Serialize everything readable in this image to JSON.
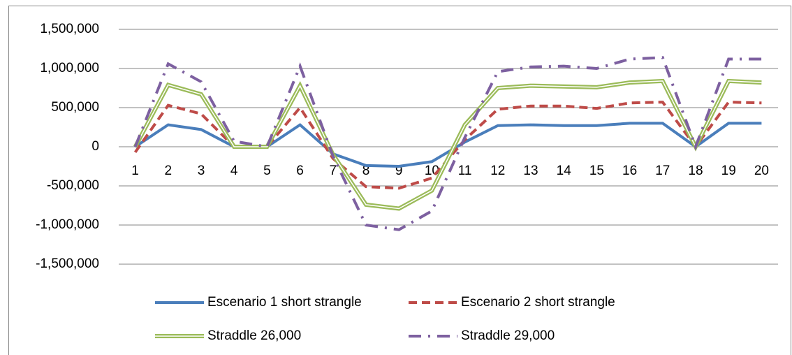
{
  "chart_data": {
    "type": "line",
    "categories": [
      "1",
      "2",
      "3",
      "4",
      "5",
      "6",
      "7",
      "8",
      "9",
      "10",
      "11",
      "12",
      "13",
      "14",
      "15",
      "16",
      "17",
      "18",
      "19",
      "20"
    ],
    "series": [
      {
        "name": "Escenario 1 short strangle",
        "color": "#4a7ebb",
        "style": "solid",
        "values": [
          0,
          280000,
          220000,
          0,
          0,
          280000,
          -90000,
          -240000,
          -250000,
          -190000,
          60000,
          270000,
          280000,
          270000,
          270000,
          300000,
          300000,
          0,
          300000,
          300000
        ]
      },
      {
        "name": "Escenario 2 short strangle",
        "color": "#be4b48",
        "style": "dashed",
        "values": [
          -70000,
          530000,
          420000,
          0,
          0,
          500000,
          -150000,
          -510000,
          -530000,
          -400000,
          90000,
          480000,
          520000,
          520000,
          490000,
          560000,
          570000,
          0,
          570000,
          560000
        ]
      },
      {
        "name": "Straddle 26,000",
        "color": "#9bbb59",
        "style": "double",
        "values": [
          0,
          790000,
          670000,
          0,
          0,
          780000,
          -100000,
          -740000,
          -790000,
          -560000,
          280000,
          750000,
          780000,
          770000,
          760000,
          820000,
          840000,
          0,
          840000,
          820000
        ]
      },
      {
        "name": "Straddle 29,000",
        "color": "#7d60a0",
        "style": "dashdot",
        "values": [
          0,
          1060000,
          830000,
          70000,
          0,
          1030000,
          -120000,
          -1000000,
          -1060000,
          -820000,
          120000,
          960000,
          1020000,
          1030000,
          1000000,
          1120000,
          1140000,
          0,
          1120000,
          1120000
        ]
      }
    ],
    "ylim": [
      -1500000,
      1500000
    ],
    "yticks": [
      {
        "value": -1500000,
        "label": "-1,500,000"
      },
      {
        "value": -1000000,
        "label": "-1,000,000"
      },
      {
        "value": -500000,
        "label": "-500,000"
      },
      0,
      {
        "value": 500000,
        "label": "500,000"
      },
      {
        "value": 1000000,
        "label": "1,000,000"
      },
      {
        "value": 1500000,
        "label": "1,500,000"
      }
    ],
    "grid": true,
    "legend": "bottom"
  }
}
